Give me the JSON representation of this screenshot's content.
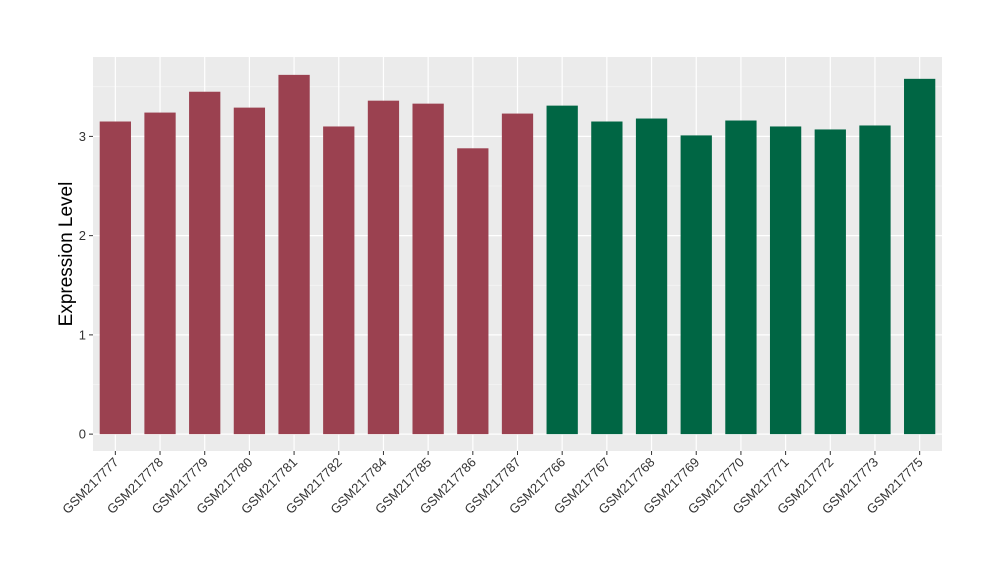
{
  "chart_data": {
    "type": "bar",
    "xlabel": "",
    "ylabel": "Expression Level",
    "ylim": [
      -0.17,
      3.8
    ],
    "yticks": [
      0,
      1,
      2,
      3
    ],
    "grid": true,
    "legend": "none",
    "background": "#EBEBEB",
    "categories": [
      "GSM217777",
      "GSM217778",
      "GSM217779",
      "GSM217780",
      "GSM217781",
      "GSM217782",
      "GSM217784",
      "GSM217785",
      "GSM217786",
      "GSM217787",
      "GSM217766",
      "GSM217767",
      "GSM217768",
      "GSM217769",
      "GSM217770",
      "GSM217771",
      "GSM217772",
      "GSM217773",
      "GSM217775"
    ],
    "values": [
      3.15,
      3.24,
      3.45,
      3.29,
      3.62,
      3.1,
      3.36,
      3.33,
      2.88,
      3.23,
      3.31,
      3.15,
      3.18,
      3.01,
      3.16,
      3.1,
      3.07,
      3.11,
      3.58
    ],
    "colors": [
      "#9B4150",
      "#9B4150",
      "#9B4150",
      "#9B4150",
      "#9B4150",
      "#9B4150",
      "#9B4150",
      "#9B4150",
      "#9B4150",
      "#9B4150",
      "#006644",
      "#006644",
      "#006644",
      "#006644",
      "#006644",
      "#006644",
      "#006644",
      "#006644",
      "#006644"
    ]
  }
}
